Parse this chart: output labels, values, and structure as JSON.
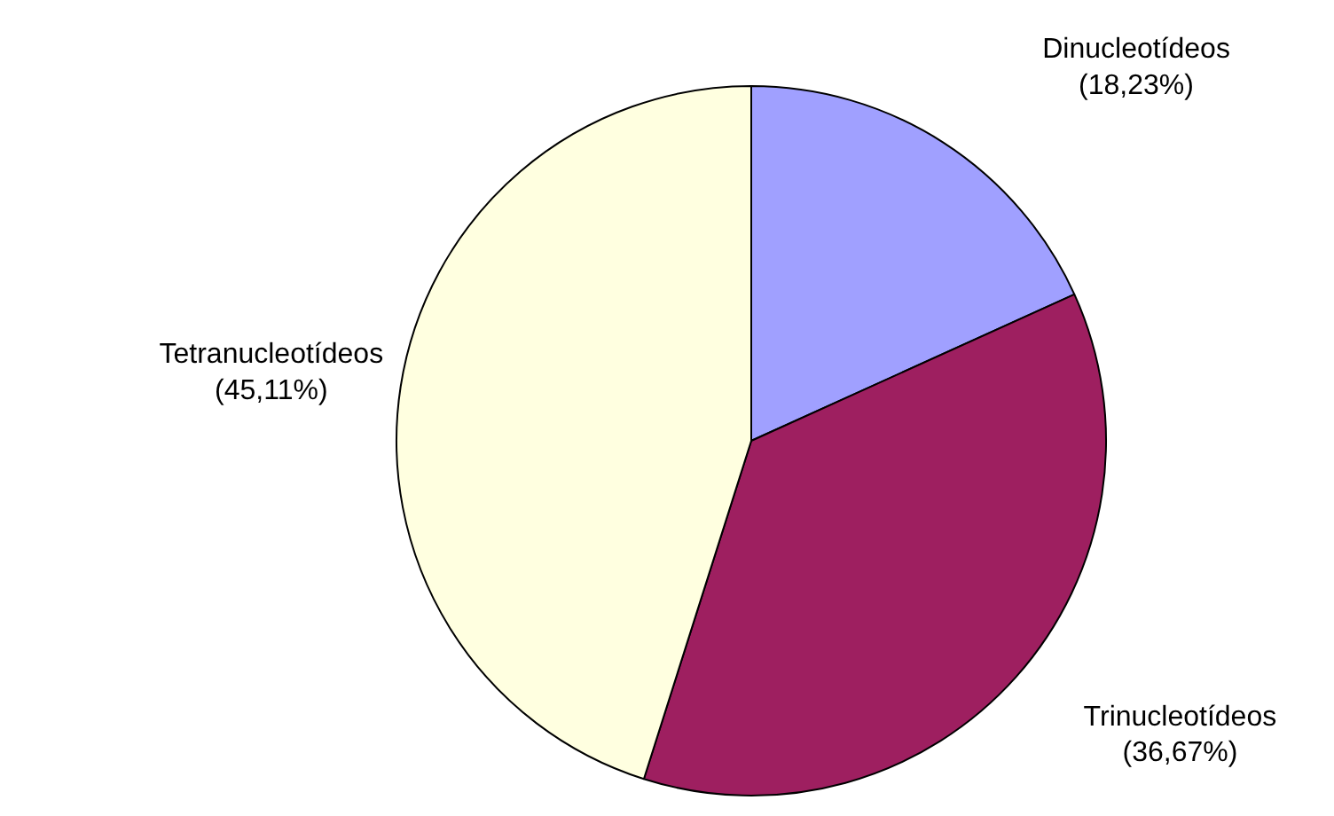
{
  "chart_data": {
    "type": "pie",
    "categories": [
      "Dinucleotídeos",
      "Trinucleotídeos",
      "Tetranucleotídeos"
    ],
    "values": [
      18.23,
      36.67,
      45.11
    ],
    "colors": [
      "#a0a0ff",
      "#9e1f60",
      "#ffffe0"
    ],
    "value_labels": [
      "(18,23%)",
      "(36,67%)",
      "(45,11%)"
    ]
  }
}
